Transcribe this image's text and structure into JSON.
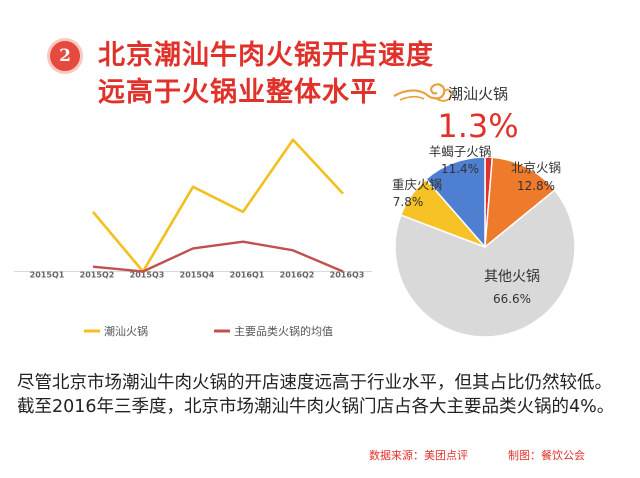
{
  "badge": "2",
  "title": {
    "line1": "北京潮汕牛肉火锅开店速度",
    "line2": "远高于火锅业整体水平"
  },
  "colors": {
    "accent": "#e0322b",
    "line_chaoshan": "#f3bf1d",
    "line_avg": "#c0504d",
    "pie_chaoshan": "#e0322b",
    "pie_beijing": "#ee7a2c",
    "pie_other": "#d9d9d9",
    "pie_chongqing": "#f6c225",
    "pie_yangxiezi": "#4f7fd0"
  },
  "chart_data": [
    {
      "type": "line",
      "categories": [
        "2015Q1",
        "2015Q2",
        "2015Q3",
        "2015Q4",
        "2016Q1",
        "2016Q2",
        "2016Q3"
      ],
      "series": [
        {
          "name": "潮汕火锅",
          "values": [
            null,
            62,
            0,
            88,
            62,
            137,
            81
          ]
        },
        {
          "name": "主要品类火锅的均值",
          "values": [
            null,
            5,
            0,
            24,
            31,
            22,
            0
          ]
        }
      ],
      "ylim": [
        -40,
        145
      ],
      "axis_value": 0,
      "legend": "bottom"
    },
    {
      "type": "pie",
      "labels": [
        "潮汕火锅",
        "北京火锅",
        "其他火锅",
        "重庆火锅",
        "羊蝎子火锅"
      ],
      "values": [
        1.3,
        12.8,
        66.6,
        7.8,
        11.4
      ],
      "value_labels": [
        "1.3%",
        "12.8%",
        "66.6%",
        "7.8%",
        "11.4%"
      ],
      "start": "top",
      "direction": "clockwise"
    }
  ],
  "body_text": "尽管北京市场潮汕牛肉火锅的开店速度远高于行业水平，但其占比仍然较低。截至2016年三季度，北京市场潮汕牛肉火锅门店占各大主要品类火锅的4%。",
  "footer": {
    "source": "数据来源：美团点评",
    "author": "制图：餐饮公会"
  }
}
